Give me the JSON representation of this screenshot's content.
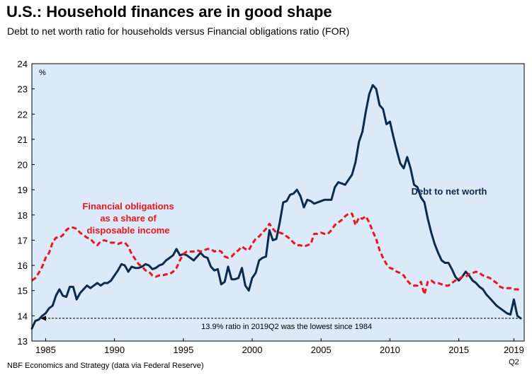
{
  "header": {
    "title": "U.S.: Household finances are in good shape",
    "subtitle": "Debt to net worth ratio for households versus Financial obligations ratio (FOR)"
  },
  "source": "NBF Economics and Strategy (data via Federal Reserve)",
  "chart_data": {
    "type": "line",
    "unit_label": "%",
    "xlim": [
      1984.0,
      2019.75
    ],
    "ylim": [
      13,
      24
    ],
    "x_ticks": [
      1985,
      1990,
      1995,
      2000,
      2005,
      2010,
      2015,
      2019
    ],
    "x_tick_labels": [
      "1985",
      "1990",
      "1995",
      "2000",
      "2005",
      "2010",
      "2015",
      "2019"
    ],
    "x_sublabel": "Q2",
    "y_ticks": [
      13,
      14,
      15,
      16,
      17,
      18,
      19,
      20,
      21,
      22,
      23,
      24
    ],
    "grid": false,
    "background_color": "#dce9f9",
    "annotation_line": {
      "y": 13.9,
      "text": "13.9% ratio in 2019Q2 was the lowest since 1984"
    },
    "series": [
      {
        "name": "Debt to net worth",
        "label_lines": [
          "Debt to net worth"
        ],
        "color": "#0c2a4a",
        "style": "solid",
        "points": [
          [
            1984.0,
            13.5
          ],
          [
            1984.25,
            13.8
          ],
          [
            1984.5,
            13.85
          ],
          [
            1984.75,
            14.0
          ],
          [
            1985.0,
            14.1
          ],
          [
            1985.25,
            14.3
          ],
          [
            1985.5,
            14.4
          ],
          [
            1985.75,
            14.8
          ],
          [
            1986.0,
            15.05
          ],
          [
            1986.25,
            14.8
          ],
          [
            1986.5,
            14.75
          ],
          [
            1986.75,
            15.15
          ],
          [
            1987.0,
            15.15
          ],
          [
            1987.25,
            14.65
          ],
          [
            1987.5,
            14.9
          ],
          [
            1987.75,
            15.05
          ],
          [
            1988.0,
            15.2
          ],
          [
            1988.25,
            15.1
          ],
          [
            1988.5,
            15.2
          ],
          [
            1988.75,
            15.3
          ],
          [
            1989.0,
            15.2
          ],
          [
            1989.25,
            15.3
          ],
          [
            1989.5,
            15.3
          ],
          [
            1989.75,
            15.4
          ],
          [
            1990.0,
            15.6
          ],
          [
            1990.25,
            15.8
          ],
          [
            1990.5,
            16.05
          ],
          [
            1990.75,
            16.0
          ],
          [
            1991.0,
            15.75
          ],
          [
            1991.25,
            15.95
          ],
          [
            1991.5,
            15.9
          ],
          [
            1991.75,
            15.9
          ],
          [
            1992.0,
            15.95
          ],
          [
            1992.25,
            16.05
          ],
          [
            1992.5,
            16.0
          ],
          [
            1992.75,
            15.85
          ],
          [
            1993.0,
            15.9
          ],
          [
            1993.25,
            16.0
          ],
          [
            1993.5,
            16.05
          ],
          [
            1993.75,
            16.2
          ],
          [
            1994.0,
            16.3
          ],
          [
            1994.25,
            16.4
          ],
          [
            1994.5,
            16.65
          ],
          [
            1994.75,
            16.4
          ],
          [
            1995.0,
            16.45
          ],
          [
            1995.25,
            16.4
          ],
          [
            1995.5,
            16.3
          ],
          [
            1995.75,
            16.2
          ],
          [
            1996.0,
            16.35
          ],
          [
            1996.25,
            16.5
          ],
          [
            1996.5,
            16.35
          ],
          [
            1996.75,
            16.3
          ],
          [
            1997.0,
            15.95
          ],
          [
            1997.25,
            15.8
          ],
          [
            1997.5,
            15.85
          ],
          [
            1997.75,
            15.25
          ],
          [
            1998.0,
            15.35
          ],
          [
            1998.25,
            15.95
          ],
          [
            1998.5,
            15.45
          ],
          [
            1998.75,
            15.45
          ],
          [
            1999.0,
            15.5
          ],
          [
            1999.25,
            15.9
          ],
          [
            1999.5,
            15.2
          ],
          [
            1999.75,
            15.0
          ],
          [
            2000.0,
            15.5
          ],
          [
            2000.25,
            15.7
          ],
          [
            2000.5,
            16.2
          ],
          [
            2000.75,
            16.3
          ],
          [
            2001.0,
            16.35
          ],
          [
            2001.25,
            17.4
          ],
          [
            2001.5,
            17.0
          ],
          [
            2001.75,
            17.05
          ],
          [
            2002.0,
            17.7
          ],
          [
            2002.25,
            18.5
          ],
          [
            2002.5,
            18.55
          ],
          [
            2002.75,
            18.8
          ],
          [
            2003.0,
            18.85
          ],
          [
            2003.25,
            19.0
          ],
          [
            2003.5,
            18.75
          ],
          [
            2003.75,
            18.3
          ],
          [
            2004.0,
            18.6
          ],
          [
            2004.25,
            18.55
          ],
          [
            2004.5,
            18.45
          ],
          [
            2004.75,
            18.5
          ],
          [
            2005.0,
            18.55
          ],
          [
            2005.25,
            18.6
          ],
          [
            2005.5,
            18.6
          ],
          [
            2005.75,
            18.6
          ],
          [
            2006.0,
            19.1
          ],
          [
            2006.25,
            19.3
          ],
          [
            2006.5,
            19.25
          ],
          [
            2006.75,
            19.2
          ],
          [
            2007.0,
            19.4
          ],
          [
            2007.25,
            19.6
          ],
          [
            2007.5,
            20.1
          ],
          [
            2007.75,
            20.9
          ],
          [
            2008.0,
            21.3
          ],
          [
            2008.25,
            22.1
          ],
          [
            2008.5,
            22.8
          ],
          [
            2008.75,
            23.15
          ],
          [
            2009.0,
            23.0
          ],
          [
            2009.25,
            22.35
          ],
          [
            2009.5,
            22.2
          ],
          [
            2009.75,
            21.6
          ],
          [
            2010.0,
            21.7
          ],
          [
            2010.25,
            21.1
          ],
          [
            2010.5,
            20.55
          ],
          [
            2010.75,
            20.05
          ],
          [
            2011.0,
            19.85
          ],
          [
            2011.25,
            20.3
          ],
          [
            2011.5,
            19.85
          ],
          [
            2011.75,
            19.2
          ],
          [
            2012.0,
            19.1
          ],
          [
            2012.25,
            18.7
          ],
          [
            2012.5,
            18.5
          ],
          [
            2012.75,
            17.85
          ],
          [
            2013.0,
            17.3
          ],
          [
            2013.25,
            16.85
          ],
          [
            2013.5,
            16.5
          ],
          [
            2013.75,
            16.2
          ],
          [
            2014.0,
            16.1
          ],
          [
            2014.25,
            16.1
          ],
          [
            2014.5,
            15.85
          ],
          [
            2014.75,
            15.55
          ],
          [
            2015.0,
            15.4
          ],
          [
            2015.25,
            15.55
          ],
          [
            2015.5,
            15.75
          ],
          [
            2015.75,
            15.6
          ],
          [
            2016.0,
            15.4
          ],
          [
            2016.25,
            15.3
          ],
          [
            2016.5,
            15.15
          ],
          [
            2016.75,
            15.05
          ],
          [
            2017.0,
            14.85
          ],
          [
            2017.25,
            14.7
          ],
          [
            2017.5,
            14.55
          ],
          [
            2017.75,
            14.4
          ],
          [
            2018.0,
            14.3
          ],
          [
            2018.25,
            14.2
          ],
          [
            2018.5,
            14.1
          ],
          [
            2018.75,
            14.05
          ],
          [
            2019.0,
            14.65
          ],
          [
            2019.25,
            14.0
          ],
          [
            2019.5,
            13.9
          ]
        ]
      },
      {
        "name": "Financial obligations as a share of disposable income",
        "label_lines": [
          "Financial obligations",
          "as a share of",
          "disposable income"
        ],
        "color": "#e8161f",
        "style": "dashed",
        "points": [
          [
            1984.0,
            15.4
          ],
          [
            1984.25,
            15.5
          ],
          [
            1984.5,
            15.7
          ],
          [
            1984.75,
            15.95
          ],
          [
            1985.0,
            16.3
          ],
          [
            1985.25,
            16.5
          ],
          [
            1985.5,
            16.9
          ],
          [
            1985.75,
            17.1
          ],
          [
            1986.0,
            17.1
          ],
          [
            1986.25,
            17.2
          ],
          [
            1986.5,
            17.4
          ],
          [
            1986.75,
            17.5
          ],
          [
            1987.0,
            17.5
          ],
          [
            1987.25,
            17.45
          ],
          [
            1987.5,
            17.3
          ],
          [
            1987.75,
            17.2
          ],
          [
            1988.0,
            17.1
          ],
          [
            1988.25,
            17.05
          ],
          [
            1988.5,
            16.9
          ],
          [
            1988.75,
            16.8
          ],
          [
            1989.0,
            16.95
          ],
          [
            1989.25,
            17.0
          ],
          [
            1989.5,
            16.95
          ],
          [
            1989.75,
            16.9
          ],
          [
            1990.0,
            16.9
          ],
          [
            1990.25,
            16.85
          ],
          [
            1990.5,
            16.9
          ],
          [
            1990.75,
            16.9
          ],
          [
            1991.0,
            16.75
          ],
          [
            1991.25,
            16.45
          ],
          [
            1991.5,
            16.25
          ],
          [
            1991.75,
            16.05
          ],
          [
            1992.0,
            15.95
          ],
          [
            1992.25,
            15.8
          ],
          [
            1992.5,
            15.75
          ],
          [
            1992.75,
            15.6
          ],
          [
            1993.0,
            15.55
          ],
          [
            1993.25,
            15.6
          ],
          [
            1993.5,
            15.6
          ],
          [
            1993.75,
            15.65
          ],
          [
            1994.0,
            15.65
          ],
          [
            1994.25,
            15.75
          ],
          [
            1994.5,
            15.9
          ],
          [
            1994.75,
            16.2
          ],
          [
            1995.0,
            16.45
          ],
          [
            1995.25,
            16.55
          ],
          [
            1995.5,
            16.55
          ],
          [
            1995.75,
            16.55
          ],
          [
            1996.0,
            16.6
          ],
          [
            1996.25,
            16.55
          ],
          [
            1996.5,
            16.6
          ],
          [
            1996.75,
            16.65
          ],
          [
            1997.0,
            16.65
          ],
          [
            1997.25,
            16.55
          ],
          [
            1997.5,
            16.6
          ],
          [
            1997.75,
            16.55
          ],
          [
            1998.0,
            16.35
          ],
          [
            1998.25,
            16.3
          ],
          [
            1998.5,
            16.35
          ],
          [
            1998.75,
            16.5
          ],
          [
            1999.0,
            16.6
          ],
          [
            1999.25,
            16.75
          ],
          [
            1999.5,
            16.65
          ],
          [
            1999.75,
            16.6
          ],
          [
            2000.0,
            16.85
          ],
          [
            2000.25,
            17.05
          ],
          [
            2000.5,
            17.15
          ],
          [
            2000.75,
            17.3
          ],
          [
            2001.0,
            17.45
          ],
          [
            2001.25,
            17.65
          ],
          [
            2001.5,
            17.45
          ],
          [
            2001.75,
            17.3
          ],
          [
            2002.0,
            17.3
          ],
          [
            2002.25,
            17.25
          ],
          [
            2002.5,
            17.15
          ],
          [
            2002.75,
            17.05
          ],
          [
            2003.0,
            16.9
          ],
          [
            2003.25,
            16.8
          ],
          [
            2003.5,
            16.8
          ],
          [
            2003.75,
            16.75
          ],
          [
            2004.0,
            16.8
          ],
          [
            2004.25,
            16.85
          ],
          [
            2004.5,
            17.25
          ],
          [
            2004.75,
            17.25
          ],
          [
            2005.0,
            17.3
          ],
          [
            2005.25,
            17.25
          ],
          [
            2005.5,
            17.25
          ],
          [
            2005.75,
            17.4
          ],
          [
            2006.0,
            17.6
          ],
          [
            2006.25,
            17.7
          ],
          [
            2006.5,
            17.8
          ],
          [
            2006.75,
            17.95
          ],
          [
            2007.0,
            18.05
          ],
          [
            2007.25,
            18.05
          ],
          [
            2007.5,
            17.6
          ],
          [
            2007.75,
            17.9
          ],
          [
            2008.0,
            17.85
          ],
          [
            2008.25,
            17.95
          ],
          [
            2008.5,
            17.7
          ],
          [
            2008.75,
            17.35
          ],
          [
            2009.0,
            17.05
          ],
          [
            2009.25,
            16.6
          ],
          [
            2009.5,
            16.3
          ],
          [
            2009.75,
            16.05
          ],
          [
            2010.0,
            15.9
          ],
          [
            2010.25,
            15.85
          ],
          [
            2010.5,
            15.75
          ],
          [
            2010.75,
            15.7
          ],
          [
            2011.0,
            15.6
          ],
          [
            2011.25,
            15.4
          ],
          [
            2011.5,
            15.25
          ],
          [
            2011.75,
            15.2
          ],
          [
            2012.0,
            15.2
          ],
          [
            2012.25,
            15.35
          ],
          [
            2012.5,
            14.85
          ],
          [
            2012.75,
            15.35
          ],
          [
            2013.0,
            15.4
          ],
          [
            2013.25,
            15.3
          ],
          [
            2013.5,
            15.3
          ],
          [
            2013.75,
            15.25
          ],
          [
            2014.0,
            15.2
          ],
          [
            2014.25,
            15.2
          ],
          [
            2014.5,
            15.3
          ],
          [
            2014.75,
            15.4
          ],
          [
            2015.0,
            15.45
          ],
          [
            2015.25,
            15.55
          ],
          [
            2015.5,
            15.55
          ],
          [
            2015.75,
            15.65
          ],
          [
            2016.0,
            15.7
          ],
          [
            2016.25,
            15.75
          ],
          [
            2016.5,
            15.7
          ],
          [
            2016.75,
            15.6
          ],
          [
            2017.0,
            15.55
          ],
          [
            2017.25,
            15.5
          ],
          [
            2017.5,
            15.4
          ],
          [
            2017.75,
            15.3
          ],
          [
            2018.0,
            15.15
          ],
          [
            2018.25,
            15.1
          ],
          [
            2018.5,
            15.1
          ],
          [
            2018.75,
            15.1
          ],
          [
            2019.0,
            15.05
          ],
          [
            2019.25,
            15.05
          ],
          [
            2019.5,
            15.0
          ]
        ]
      }
    ]
  }
}
